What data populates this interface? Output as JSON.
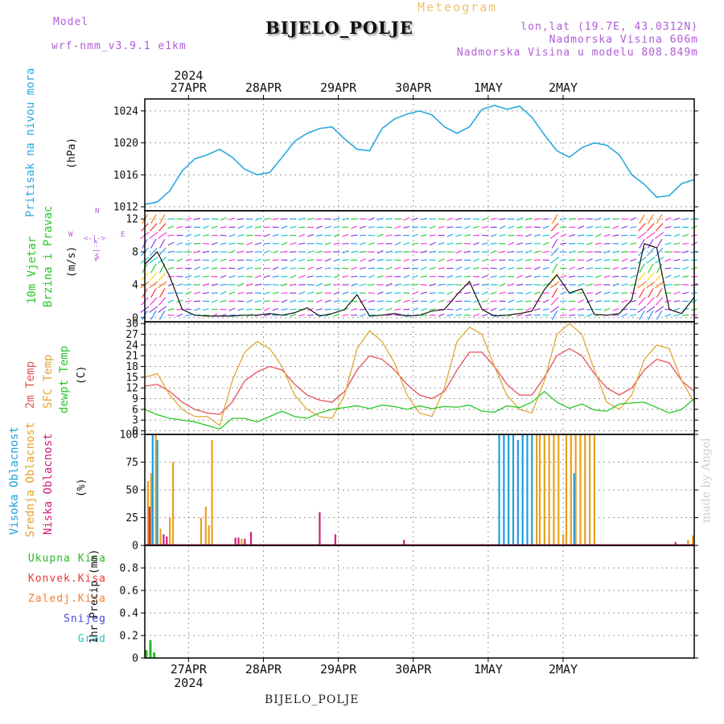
{
  "header": {
    "model_label": "Model",
    "model_name": "wrf-nmm_v3.9.1 e1km",
    "title": "BIJELO_POLJE",
    "subtitle": "Meteogram",
    "lonlat": "lon,lat (19.7E, 43.0312N)",
    "elevation": "Nadmorska Visina 606m",
    "model_elevation": "Nadmorska Visina u modelu 808.849m",
    "footer_title": "BIJELO_POLJE",
    "watermark": "made by Angel"
  },
  "colors": {
    "pressure": "#29a9e0",
    "temp2m": "#e8505a",
    "sfc": "#e0a838",
    "dew": "#28c828",
    "high_cloud": "#1aa0e0",
    "mid_cloud": "#e8a020",
    "low_cloud": "#d0207a",
    "total_precip": "#28b828",
    "conv_precip": "#e83838",
    "frozen_precip": "#f08030",
    "snow": "#4848e0",
    "graupel": "#30c0c0",
    "purple": "#b05cd8"
  },
  "chart_data": [
    {
      "type": "line",
      "panel": "pressure",
      "ylabel_main": "Pritisak na nivou mora",
      "ylabel_unit": "(hPa)",
      "yticks": [
        1012,
        1016,
        1020,
        1024
      ],
      "ylim": [
        1011.5,
        1025.5
      ],
      "xlim": [
        0,
        176
      ],
      "x_axis_top": {
        "year": "2024",
        "labels": [
          "27APR",
          "28APR",
          "29APR",
          "30APR",
          "1MAY",
          "2MAY"
        ]
      },
      "x_hours": [
        0,
        4,
        8,
        12,
        16,
        20,
        24,
        28,
        32,
        36,
        40,
        44,
        48,
        52,
        56,
        60,
        64,
        68,
        72,
        76,
        80,
        84,
        88,
        92,
        96,
        100,
        104,
        108,
        112,
        116,
        120,
        124,
        128,
        132,
        136,
        140,
        144,
        148,
        152,
        156,
        160,
        164,
        168,
        172,
        176
      ],
      "series": [
        {
          "values": [
            1012.3,
            1012.6,
            1014.0,
            1016.5,
            1018.0,
            1018.5,
            1019.2,
            1018.2,
            1016.7,
            1016.0,
            1016.3,
            1018.2,
            1020.2,
            1021.2,
            1021.8,
            1022.0,
            1020.5,
            1019.2,
            1019.0,
            1021.8,
            1023.0,
            1023.6,
            1024.0,
            1023.5,
            1022.0,
            1021.2,
            1022.0,
            1024.2,
            1024.7,
            1024.2,
            1024.6,
            1023.2,
            1021.0,
            1019.0,
            1018.2,
            1019.4,
            1020.0,
            1019.7,
            1018.5,
            1016.0,
            1014.8,
            1013.2,
            1013.4,
            1014.9,
            1015.4
          ]
        }
      ]
    },
    {
      "type": "line",
      "panel": "wind",
      "ylabel_main": "10m Vjetar",
      "ylabel_sub": "Brzina i Pravac",
      "ylabel_unit": "(m/s)",
      "compass": {
        "n": "N",
        "s": "S",
        "w": "W",
        "e": "E",
        "arrow": "<-|->"
      },
      "yticks": [
        0,
        4,
        8,
        12
      ],
      "ylim": [
        -0.5,
        13
      ],
      "series": [
        {
          "values": [
            6.5,
            8.0,
            5.0,
            1.0,
            0.3,
            0.2,
            0.2,
            0.2,
            0.3,
            0.3,
            0.5,
            0.3,
            0.6,
            1.2,
            0.2,
            0.5,
            1.0,
            2.8,
            0.2,
            0.3,
            0.5,
            0.2,
            0.3,
            0.8,
            1.0,
            2.8,
            4.4,
            1.0,
            0.2,
            0.3,
            0.5,
            0.8,
            3.4,
            5.2,
            3.0,
            3.5,
            0.4,
            0.3,
            0.5,
            2.2,
            9.0,
            8.5,
            1.0,
            0.5,
            2.5
          ]
        }
      ]
    },
    {
      "type": "line",
      "panel": "temperature",
      "ylabel_main": "2m Temp",
      "ylabel_sub": "SFC Temp",
      "ylabel_sub2": "dewpt Temp",
      "ylabel_unit": "(C)",
      "yticks": [
        0,
        3,
        6,
        9,
        12,
        15,
        18,
        21,
        24,
        27,
        30
      ],
      "ylim": [
        -1,
        30.5
      ],
      "series": [
        {
          "name": "2m Temp",
          "values": [
            12.5,
            13,
            11,
            8,
            6,
            5,
            4.6,
            8,
            14,
            16.5,
            18,
            17,
            13,
            10,
            8.6,
            8,
            11,
            17,
            21,
            20,
            17,
            13,
            10,
            9,
            11,
            17,
            22,
            22,
            18,
            13,
            10,
            10,
            15,
            21,
            23,
            21,
            16,
            12,
            10,
            12,
            17,
            20,
            19,
            14,
            11
          ]
        },
        {
          "name": "SFC Temp",
          "values": [
            15,
            16,
            10,
            6,
            4,
            4,
            1.5,
            14,
            22,
            25,
            23,
            18,
            10,
            6,
            4,
            3.5,
            10,
            23,
            28,
            25,
            19,
            10,
            5,
            4,
            12,
            25,
            29,
            27,
            18,
            10,
            6,
            5,
            14,
            27,
            30,
            27,
            17,
            8,
            6,
            10,
            20,
            24,
            23,
            14,
            8
          ]
        },
        {
          "name": "dewpt Temp",
          "values": [
            6,
            4.5,
            3.5,
            3,
            2.5,
            1.5,
            0.5,
            3.5,
            3.5,
            2.5,
            4,
            5.5,
            4,
            3.5,
            5,
            6,
            6.5,
            7,
            6.2,
            7.2,
            6.8,
            6,
            7,
            6.2,
            6.8,
            6.6,
            7.2,
            5.5,
            5.2,
            7,
            6.5,
            8,
            11,
            8,
            6.3,
            7.5,
            5.8,
            5.5,
            7.5,
            7.8,
            8,
            6.5,
            5,
            6,
            9
          ]
        }
      ]
    },
    {
      "type": "bar",
      "panel": "clouds",
      "ylabel_high": "Visoka Oblacnost",
      "ylabel_mid": "Srednja Oblacnost",
      "ylabel_low": "Niska Oblacnost",
      "ylabel_unit": "(%)",
      "yticks": [
        0,
        25,
        50,
        75,
        100
      ],
      "ylim": [
        0,
        100
      ],
      "high_cloud": [
        {
          "x": 2.5,
          "v": 100
        },
        {
          "x": 4,
          "v": 95
        },
        {
          "x": 113.5,
          "v": 100
        },
        {
          "x": 115,
          "v": 100
        },
        {
          "x": 116.5,
          "v": 100
        },
        {
          "x": 118,
          "v": 100
        },
        {
          "x": 119.5,
          "v": 95
        },
        {
          "x": 121,
          "v": 100
        },
        {
          "x": 122.5,
          "v": 100
        },
        {
          "x": 124,
          "v": 100
        },
        {
          "x": 137.5,
          "v": 65
        }
      ],
      "mid_cloud": [
        {
          "x": 1,
          "v": 58
        },
        {
          "x": 2,
          "v": 65
        },
        {
          "x": 3.5,
          "v": 100
        },
        {
          "x": 5,
          "v": 15
        },
        {
          "x": 8,
          "v": 25
        },
        {
          "x": 9,
          "v": 75
        },
        {
          "x": 18,
          "v": 25
        },
        {
          "x": 19.5,
          "v": 35
        },
        {
          "x": 20.5,
          "v": 18
        },
        {
          "x": 21.5,
          "v": 95
        },
        {
          "x": 31,
          "v": 6
        },
        {
          "x": 125.5,
          "v": 100
        },
        {
          "x": 126.5,
          "v": 100
        },
        {
          "x": 128,
          "v": 100
        },
        {
          "x": 129.5,
          "v": 100
        },
        {
          "x": 131,
          "v": 100
        },
        {
          "x": 132.5,
          "v": 100
        },
        {
          "x": 134,
          "v": 10
        },
        {
          "x": 135,
          "v": 100
        },
        {
          "x": 136.5,
          "v": 100
        },
        {
          "x": 138,
          "v": 100
        },
        {
          "x": 139.5,
          "v": 100
        },
        {
          "x": 141,
          "v": 100
        },
        {
          "x": 142.5,
          "v": 100
        },
        {
          "x": 144,
          "v": 100
        },
        {
          "x": 174,
          "v": 5
        },
        {
          "x": 175.5,
          "v": 9
        }
      ],
      "low_cloud": [
        {
          "x": 1.5,
          "v": 35
        },
        {
          "x": 6,
          "v": 10
        },
        {
          "x": 7,
          "v": 8
        },
        {
          "x": 29,
          "v": 7
        },
        {
          "x": 30,
          "v": 7
        },
        {
          "x": 32,
          "v": 6
        },
        {
          "x": 34,
          "v": 12
        },
        {
          "x": 56,
          "v": 30
        },
        {
          "x": 61,
          "v": 10
        },
        {
          "x": 83,
          "v": 5
        },
        {
          "x": 170,
          "v": 3
        }
      ]
    },
    {
      "type": "bar",
      "panel": "precipitation",
      "legend": [
        "Ukupna Kisa",
        "Konvek.Kisa",
        "Zaledj.Kisa",
        "Snijeg",
        "Grad"
      ],
      "ylabel_unit": "1hr Precip (mm)",
      "yticks": [
        0,
        0.2,
        0.4,
        0.6,
        0.8
      ],
      "ylim": [
        0,
        1.0
      ],
      "total": [
        {
          "x": 0.5,
          "v": 0.07
        },
        {
          "x": 1.8,
          "v": 0.16
        },
        {
          "x": 3,
          "v": 0.05
        }
      ],
      "x_axis_bottom": {
        "labels": [
          "27APR",
          "28APR",
          "29APR",
          "30APR",
          "1MAY",
          "2MAY"
        ],
        "year": "2024"
      }
    }
  ]
}
